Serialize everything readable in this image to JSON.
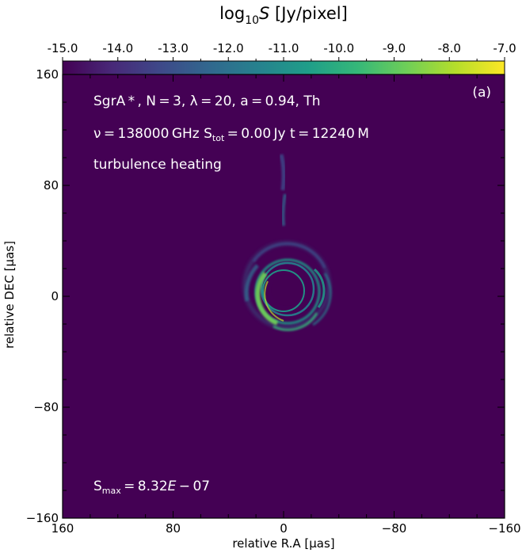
{
  "colorbar": {
    "title_main": "log",
    "title_sub": "10",
    "title_italic": "S",
    "title_unit": " [Jy/pixel]",
    "ticks": [
      "-15.0",
      "-14.0",
      "-13.0",
      "-12.0",
      "-11.0",
      "-10.0",
      "-9.0",
      "-8.0",
      "-7.0"
    ],
    "range": [
      -15.0,
      -7.0
    ],
    "colormap": "viridis",
    "colors": [
      "#440154",
      "#482878",
      "#3e4989",
      "#31688e",
      "#26828e",
      "#1f9e89",
      "#35b779",
      "#6ece58",
      "#b5de2b",
      "#fde725"
    ]
  },
  "overlay": {
    "line1": "SgrA * , N = 3, λ = 20, a = 0.94, Th",
    "line2_prefix": "ν = 138000 GHz  S",
    "line2_sub": "tot",
    "line2_suffix": " = 0.00 Jy  t = 12240 M",
    "line3": "turbulence heating",
    "smax_prefix": "S",
    "smax_sub": "max",
    "smax_value": " = 8.32",
    "smax_e": "E",
    "smax_exp": " − 07",
    "panel_label": "(a)"
  },
  "chart_data": {
    "type": "heatmap",
    "title": "",
    "xlabel": "relative R.A [μas]",
    "ylabel": "relative DEC [μas]",
    "xlim": [
      160,
      -160
    ],
    "ylim": [
      -160,
      160
    ],
    "x_ticks": [
      "160",
      "80",
      "0",
      "−80",
      "−160"
    ],
    "y_ticks": [
      "160",
      "80",
      "0",
      "−80",
      "−160"
    ],
    "x_tick_values": [
      160,
      80,
      0,
      -80,
      -160
    ],
    "y_tick_values": [
      160,
      80,
      0,
      -80,
      -160
    ],
    "background_log10S": -15.0,
    "features": [
      {
        "name": "photon ring inner",
        "cx": 0,
        "cy": 3,
        "r": 20,
        "log10S": -11.0
      },
      {
        "name": "bright ring south-east",
        "cx": 3,
        "cy": 2,
        "r": 25,
        "log10S": -10.0
      },
      {
        "name": "outer faint ring",
        "cx": -2,
        "cy": 7,
        "r": 30,
        "log10S": -11.5
      },
      {
        "name": "jet knot north",
        "x": 2,
        "y_from": 50,
        "y_to": 100,
        "log10S": -12.0
      }
    ]
  }
}
